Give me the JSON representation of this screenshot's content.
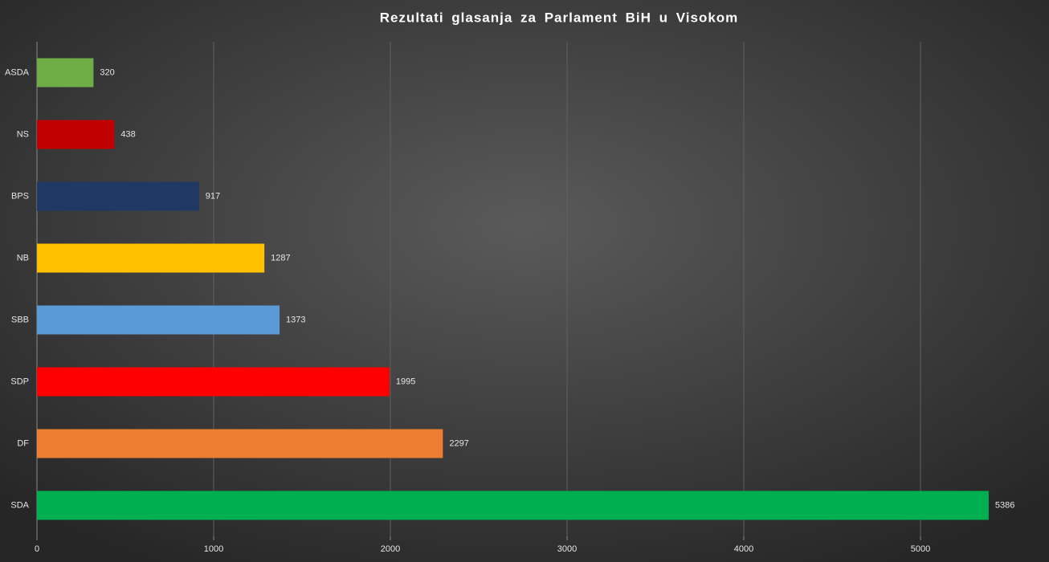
{
  "chart_data": {
    "type": "barh",
    "title": "Rezultati glasanja za Parlament BiH u Visokom",
    "categories": [
      "ASDA",
      "NS",
      "BPS",
      "NB",
      "SBB",
      "SDP",
      "DF",
      "SDA"
    ],
    "values": [
      320,
      438,
      917,
      1287,
      1373,
      1995,
      2297,
      5386
    ],
    "colors": [
      "#70ad47",
      "#c00000",
      "#203864",
      "#ffc000",
      "#5b9bd5",
      "#ff0000",
      "#ed7d31",
      "#00b050"
    ],
    "xlim": [
      0,
      5700
    ],
    "xticks": [
      0,
      1000,
      2000,
      3000,
      4000,
      5000
    ],
    "grid": true
  }
}
